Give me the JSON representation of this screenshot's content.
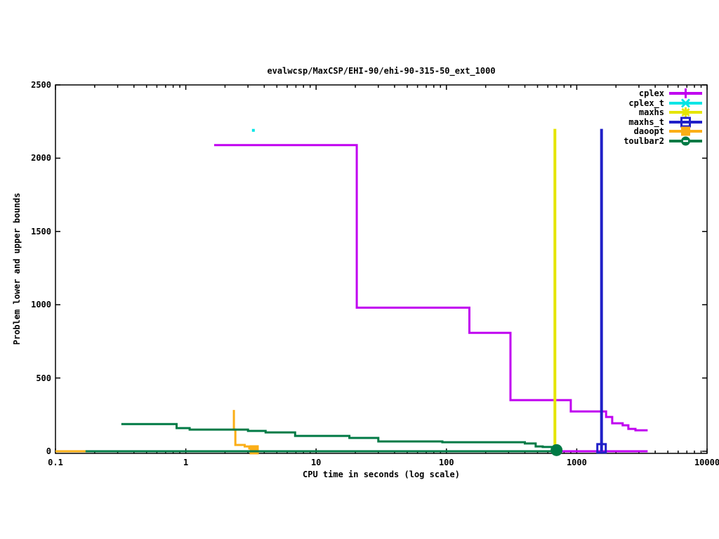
{
  "title": "evalwcsp/MaxCSP/EHI-90/ehi-90-315-50_ext_1000",
  "chart_data": {
    "type": "line",
    "title": "evalwcsp/MaxCSP/EHI-90/ehi-90-315-50_ext_1000",
    "xlabel": "CPU time in seconds (log scale)",
    "ylabel": "Problem lower and upper bounds",
    "x_scale": "log",
    "xlim": [
      0.1,
      10000
    ],
    "ylim": [
      0,
      2500
    ],
    "x_ticks": [
      0.1,
      1,
      10,
      100,
      1000,
      10000
    ],
    "x_tick_labels": [
      "0.1",
      "1",
      "10",
      "100",
      "1000",
      "10000"
    ],
    "y_ticks": [
      0,
      500,
      1000,
      1500,
      2000,
      2500
    ],
    "y_tick_labels": [
      "0",
      "500",
      "1000",
      "1500",
      "2000",
      "2500"
    ],
    "grid": false,
    "background": "#ffffff",
    "axis_color": "#000000",
    "legend_position": "top-right-inside",
    "series": [
      {
        "name": "cplex",
        "color": "#c000f0",
        "width": 3,
        "marker": "plus",
        "lines": [
          [
            [
              1.65,
              2089
            ],
            [
              20.5,
              2089
            ],
            [
              20.5,
              980
            ],
            [
              150,
              980
            ],
            [
              150,
              808
            ],
            [
              310,
              808
            ],
            [
              310,
              349
            ],
            [
              900,
              349
            ],
            [
              900,
              272
            ],
            [
              1680,
              272
            ],
            [
              1680,
              234
            ],
            [
              1870,
              234
            ],
            [
              1870,
              191
            ],
            [
              2250,
              191
            ],
            [
              2250,
              177
            ],
            [
              2490,
              177
            ],
            [
              2490,
              153
            ],
            [
              2820,
              153
            ],
            [
              2820,
              143
            ],
            [
              3500,
              143
            ]
          ],
          [
            [
              1.65,
              0
            ],
            [
              3500,
              0
            ]
          ]
        ],
        "markers": []
      },
      {
        "name": "cplex_t",
        "color": "#00e5e5",
        "width": 3,
        "marker": "cross",
        "lines": [],
        "markers": [
          {
            "x": 3.3,
            "y": 2190,
            "type": "small-square"
          }
        ]
      },
      {
        "name": "maxhs",
        "color": "#e5e500",
        "width": 4,
        "marker": "asterisk",
        "lines": [
          [
            [
              680,
              0
            ],
            [
              680,
              2200
            ]
          ]
        ],
        "markers": []
      },
      {
        "name": "maxhs_t",
        "color": "#2020c8",
        "width": 4,
        "marker": "open-square",
        "lines": [
          [
            [
              1550,
              0
            ],
            [
              1550,
              2200
            ]
          ]
        ],
        "markers": [
          {
            "x": 1550,
            "y": 20,
            "type": "open-square"
          }
        ]
      },
      {
        "name": "daoopt",
        "color": "#fbae17",
        "width": 3,
        "marker": "filled-square",
        "lines": [
          [
            [
              2.34,
              282
            ],
            [
              2.34,
              148
            ],
            [
              2.4,
              148
            ],
            [
              2.4,
              43
            ],
            [
              2.83,
              43
            ],
            [
              2.83,
              33
            ],
            [
              3.07,
              33
            ],
            [
              3.07,
              19
            ],
            [
              3.35,
              19
            ]
          ],
          [
            [
              0.1,
              0
            ],
            [
              3.35,
              0
            ]
          ]
        ],
        "markers": [
          {
            "x": 3.35,
            "y": 10,
            "type": "filled-square"
          }
        ]
      },
      {
        "name": "toulbar2",
        "color": "#007a45",
        "width": 3,
        "marker": "circle-dash",
        "lines": [
          [
            [
              0.32,
              186
            ],
            [
              0.85,
              186
            ],
            [
              0.85,
              158
            ],
            [
              1.07,
              158
            ],
            [
              1.07,
              148
            ],
            [
              3.0,
              148
            ],
            [
              3.0,
              139
            ],
            [
              4.1,
              139
            ],
            [
              4.1,
              129
            ],
            [
              6.9,
              129
            ],
            [
              6.9,
              105
            ],
            [
              18,
              105
            ],
            [
              18,
              91
            ],
            [
              30,
              91
            ],
            [
              30,
              67
            ],
            [
              93,
              67
            ],
            [
              93,
              62
            ],
            [
              400,
              62
            ],
            [
              400,
              53
            ],
            [
              484,
              53
            ],
            [
              484,
              33
            ],
            [
              548,
              33
            ],
            [
              548,
              29
            ],
            [
              660,
              29
            ],
            [
              660,
              5
            ],
            [
              700,
              5
            ]
          ],
          [
            [
              0.17,
              0
            ],
            [
              690,
              0
            ]
          ]
        ],
        "markers": [
          {
            "x": 700,
            "y": 8,
            "type": "filled-circle"
          }
        ]
      }
    ]
  }
}
